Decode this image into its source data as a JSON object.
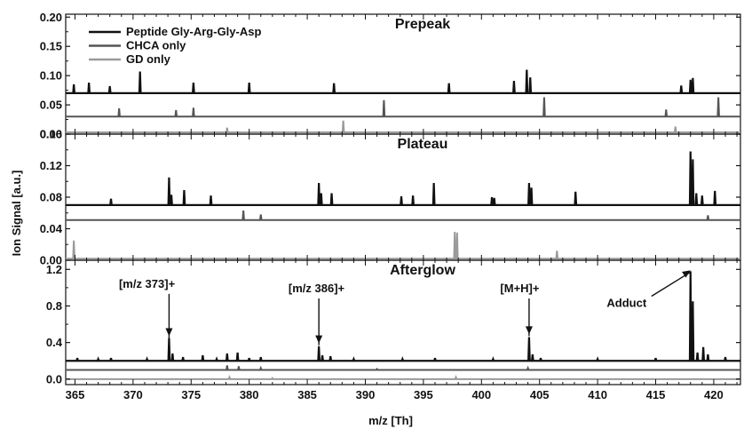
{
  "chart_data": {
    "type": "line",
    "xlabel": "m/z [Th]",
    "ylabel": "Ion Signal [a.u.]",
    "xlim": [
      364.2,
      422.3
    ],
    "x_ticks": [
      365,
      370,
      375,
      380,
      385,
      390,
      395,
      400,
      405,
      410,
      415,
      420
    ],
    "x_tick_labels": [
      "365",
      "370",
      "375",
      "380",
      "385",
      "390",
      "395",
      "400",
      "405",
      "410",
      "415",
      "420"
    ],
    "colors": {
      "peptide": "#111111",
      "chca": "#555555",
      "gd": "#9a9a9a"
    },
    "legend": {
      "placement": "top-left",
      "entries": [
        {
          "key": "peptide",
          "label": "Peptide Gly-Arg-Gly-Asp"
        },
        {
          "key": "chca",
          "label": "CHCA only"
        },
        {
          "key": "gd",
          "label": "GD only"
        }
      ]
    },
    "panels": [
      {
        "title": "Prepeak",
        "ylim": [
          0,
          0.205
        ],
        "y_ticks": [
          0.0,
          0.05,
          0.1,
          0.15,
          0.2
        ],
        "y_tick_labels": [
          "0.00",
          "0.05",
          "0.10",
          "0.15",
          "0.20"
        ],
        "series": [
          {
            "key": "peptide",
            "baseline": 0.07,
            "peaks": [
              [
                364.9,
                0.085
              ],
              [
                366.2,
                0.088
              ],
              [
                368.0,
                0.082
              ],
              [
                370.6,
                0.107
              ],
              [
                375.2,
                0.088
              ],
              [
                380.0,
                0.088
              ],
              [
                387.3,
                0.087
              ],
              [
                397.2,
                0.087
              ],
              [
                402.8,
                0.091
              ],
              [
                403.9,
                0.11
              ],
              [
                404.2,
                0.097
              ],
              [
                417.2,
                0.083
              ],
              [
                418.0,
                0.093
              ],
              [
                418.2,
                0.096
              ]
            ]
          },
          {
            "key": "chca",
            "baseline": 0.03,
            "peaks": [
              [
                368.8,
                0.044
              ],
              [
                373.7,
                0.041
              ],
              [
                375.2,
                0.045
              ],
              [
                391.6,
                0.058
              ],
              [
                405.4,
                0.063
              ],
              [
                415.9,
                0.042
              ],
              [
                420.4,
                0.063
              ]
            ]
          },
          {
            "key": "gd",
            "baseline": 0.003,
            "peaks": [
              [
                378.1,
                0.011
              ],
              [
                388.1,
                0.023
              ],
              [
                416.7,
                0.013
              ]
            ]
          }
        ]
      },
      {
        "title": "Plateau",
        "ylim": [
          0,
          0.16
        ],
        "y_ticks": [
          0.0,
          0.04,
          0.08,
          0.12,
          0.16
        ],
        "y_tick_labels": [
          "0.00",
          "0.04",
          "0.08",
          "0.12",
          "0.16"
        ],
        "series": [
          {
            "key": "peptide",
            "baseline": 0.07,
            "peaks": [
              [
                368.1,
                0.078
              ],
              [
                373.1,
                0.105
              ],
              [
                373.3,
                0.083
              ],
              [
                374.4,
                0.089
              ],
              [
                376.7,
                0.082
              ],
              [
                386.0,
                0.098
              ],
              [
                386.2,
                0.085
              ],
              [
                387.1,
                0.085
              ],
              [
                393.1,
                0.081
              ],
              [
                394.1,
                0.082
              ],
              [
                395.9,
                0.098
              ],
              [
                400.9,
                0.08
              ],
              [
                401.1,
                0.079
              ],
              [
                404.1,
                0.098
              ],
              [
                404.3,
                0.092
              ],
              [
                408.1,
                0.087
              ],
              [
                418.0,
                0.138
              ],
              [
                418.2,
                0.128
              ],
              [
                418.5,
                0.085
              ],
              [
                419.0,
                0.082
              ],
              [
                420.1,
                0.088
              ]
            ]
          },
          {
            "key": "chca",
            "baseline": 0.051,
            "peaks": [
              [
                379.5,
                0.063
              ],
              [
                381.0,
                0.058
              ],
              [
                419.5,
                0.057
              ]
            ]
          },
          {
            "key": "gd",
            "baseline": 0.002,
            "peaks": [
              [
                364.9,
                0.025
              ],
              [
                397.7,
                0.036
              ],
              [
                397.9,
                0.035
              ],
              [
                406.5,
                0.012
              ]
            ]
          }
        ]
      },
      {
        "title": "Afterglow",
        "ylim": [
          -0.06,
          1.3
        ],
        "y_ticks": [
          0.0,
          0.4,
          0.8,
          1.2
        ],
        "y_tick_labels": [
          "0.0",
          "0.4",
          "0.8",
          "1.2"
        ],
        "series": [
          {
            "key": "peptide",
            "baseline": 0.2,
            "peaks": [
              [
                365.2,
                0.23
              ],
              [
                367.0,
                0.22
              ],
              [
                368.1,
                0.23
              ],
              [
                371.2,
                0.22
              ],
              [
                373.1,
                0.45
              ],
              [
                373.4,
                0.28
              ],
              [
                374.3,
                0.24
              ],
              [
                376.0,
                0.26
              ],
              [
                377.2,
                0.22
              ],
              [
                378.1,
                0.28
              ],
              [
                379.0,
                0.29
              ],
              [
                380.0,
                0.23
              ],
              [
                381.0,
                0.24
              ],
              [
                386.0,
                0.36
              ],
              [
                386.3,
                0.26
              ],
              [
                387.0,
                0.25
              ],
              [
                389.0,
                0.22
              ],
              [
                393.2,
                0.22
              ],
              [
                396.0,
                0.23
              ],
              [
                401.0,
                0.22
              ],
              [
                404.1,
                0.46
              ],
              [
                404.4,
                0.27
              ],
              [
                405.1,
                0.23
              ],
              [
                410.0,
                0.22
              ],
              [
                415.0,
                0.23
              ],
              [
                418.0,
                1.18
              ],
              [
                418.2,
                0.85
              ],
              [
                418.6,
                0.29
              ],
              [
                419.1,
                0.35
              ],
              [
                419.5,
                0.27
              ],
              [
                421.0,
                0.24
              ]
            ]
          },
          {
            "key": "chca",
            "baseline": 0.1,
            "peaks": [
              [
                378.1,
                0.15
              ],
              [
                379.1,
                0.14
              ],
              [
                381.0,
                0.12
              ],
              [
                391.0,
                0.11
              ],
              [
                404.0,
                0.12
              ]
            ]
          },
          {
            "key": "gd",
            "baseline": 0.0,
            "peaks": [
              [
                378.3,
                0.02
              ],
              [
                382.0,
                0.01
              ],
              [
                397.8,
                0.02
              ]
            ]
          }
        ],
        "annotations": [
          {
            "label": "[m/z 373]+",
            "x": 373.1,
            "target": 0.47,
            "text_x": 371.2,
            "text_y": 1.0
          },
          {
            "label": "[m/z 386]+",
            "x": 386.0,
            "target": 0.39,
            "text_x": 385.8,
            "text_y": 0.95
          },
          {
            "label": "[M+H]+",
            "x": 404.1,
            "target": 0.49,
            "text_x": 403.3,
            "text_y": 0.95
          },
          {
            "label": "Adduct",
            "x": 418.0,
            "target": 1.19,
            "text_x": 412.5,
            "text_y": 0.79
          }
        ]
      }
    ]
  }
}
